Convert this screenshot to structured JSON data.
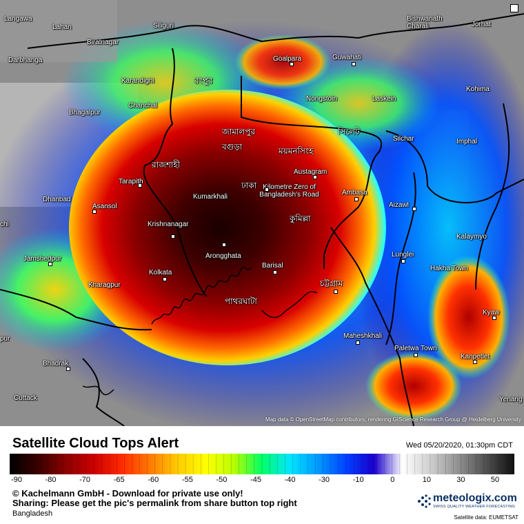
{
  "map": {
    "places": [
      {
        "name": "Langawa",
        "dot": false
      },
      {
        "name": "Lahan",
        "dot": false
      },
      {
        "name": "Siliguri",
        "dot": false
      },
      {
        "name": "Biratnagar",
        "dot": false
      },
      {
        "name": "Darbhanga",
        "dot": false
      },
      {
        "name": "Goalpara",
        "dot": false
      },
      {
        "name": "Guwahati",
        "dot": false
      },
      {
        "name": "Bishwanath Charali",
        "dot": false
      },
      {
        "name": "Jorhat",
        "dot": false
      },
      {
        "name": "Karandighi",
        "dot": false
      },
      {
        "name": "রংপুর",
        "dot": false
      },
      {
        "name": "Nongstoin",
        "dot": false
      },
      {
        "name": "Laskein",
        "dot": false
      },
      {
        "name": "Kohima",
        "dot": false
      },
      {
        "name": "Bhagalpur",
        "dot": false
      },
      {
        "name": "Chanchal",
        "dot": false
      },
      {
        "name": "জামালপুর",
        "dot": false
      },
      {
        "name": "সিলেট",
        "dot": false
      },
      {
        "name": "Silchar",
        "dot": false
      },
      {
        "name": "Imphal",
        "dot": false
      },
      {
        "name": "বগুড়া",
        "dot": false
      },
      {
        "name": "ময়মনসিংহ",
        "dot": false
      },
      {
        "name": "রাজশাহী",
        "dot": false
      },
      {
        "name": "Austagram",
        "dot": false
      },
      {
        "name": "Tarapith",
        "dot": false
      },
      {
        "name": "ঢাকা",
        "dot": false
      },
      {
        "name": "Kilometre Zero of Bangladesh's Road",
        "dot": false
      },
      {
        "name": "Ambasa",
        "dot": false
      },
      {
        "name": "Dhanbad",
        "dot": false
      },
      {
        "name": "Asansol",
        "dot": false
      },
      {
        "name": "Kumarkhali",
        "dot": false
      },
      {
        "name": "Aizawl",
        "dot": false
      },
      {
        "name": "Krishnanagar",
        "dot": false
      },
      {
        "name": "কুমিল্লা",
        "dot": false
      },
      {
        "name": "Kalaymyo",
        "dot": false
      },
      {
        "name": "Jamshedpur",
        "dot": false
      },
      {
        "name": "Arongghata",
        "dot": false
      },
      {
        "name": "Lunglei",
        "dot": false
      },
      {
        "name": "Barisal",
        "dot": false
      },
      {
        "name": "Kolkata",
        "dot": false
      },
      {
        "name": "Hakha Town",
        "dot": false
      },
      {
        "name": "Kharagpur",
        "dot": false
      },
      {
        "name": "চট্টগ্রাম",
        "dot": false
      },
      {
        "name": "পাথরঘাটা",
        "dot": false
      },
      {
        "name": "Kyaw",
        "dot": false
      },
      {
        "name": "Maheshkhali",
        "dot": false
      },
      {
        "name": "Paletwa Town",
        "dot": false
      },
      {
        "name": "Kanpetlet",
        "dot": false
      },
      {
        "name": "Bhadrak",
        "dot": false
      },
      {
        "name": "Cuttack",
        "dot": false
      },
      {
        "name": "Yenang",
        "dot": false
      },
      {
        "name": "chi",
        "dot": false
      },
      {
        "name": "pur",
        "dot": false
      }
    ],
    "attribution": "Map data © OpenStreetMap contributors, rendering GIScience Research Group @ Heidelberg University"
  },
  "legend": {
    "title": "Satellite Cloud Tops Alert",
    "datetime": "Wed 05/20/2020, 01:30pm CDT",
    "scale_ticks": [
      "-90",
      "-80",
      "-70",
      "-65",
      "-60",
      "-55",
      "-50",
      "-45",
      "-40",
      "-30",
      "-10",
      "0",
      "10",
      "30",
      "50"
    ],
    "scale_colors": [
      "#000000",
      "#3a0000",
      "#8b0000",
      "#cc0000",
      "#ff2a00",
      "#ff7a00",
      "#ffcc00",
      "#ffff00",
      "#b8ff00",
      "#00ff66",
      "#00e5ff",
      "#0099ff",
      "#0040ff",
      "#1a00cc",
      "#ffffff",
      "#d0d0d0",
      "#909090",
      "#505050",
      "#101010"
    ]
  },
  "footer": {
    "copyright": "© Kachelmann GmbH - Download for private use only!",
    "sharing": "Sharing: Please get the pic's permalink from share button top right",
    "region": "Bangladesh",
    "logo_text": "meteologix.com",
    "logo_tagline": "SWISS QUALITY WEATHER FORECASTING",
    "satellite_source": "Satellite data: EUMETSAT"
  }
}
